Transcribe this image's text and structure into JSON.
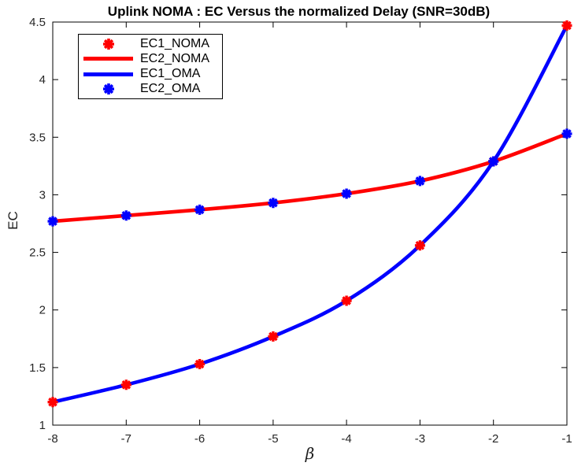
{
  "figure": {
    "background": "#ffffff",
    "axis_color": "#000000",
    "tick_label_color": "#262626"
  },
  "chart_data": {
    "type": "line",
    "title": "Uplink NOMA : EC Versus the normalized Delay (SNR=30dB)",
    "xlabel": "β",
    "ylabel": "EC",
    "x": [
      -8,
      -7,
      -6,
      -5,
      -4,
      -3,
      -2,
      -1
    ],
    "xlim": [
      -8,
      -1
    ],
    "ylim": [
      1,
      4.5
    ],
    "xticks": [
      -8,
      -7,
      -6,
      -5,
      -4,
      -3,
      -2,
      -1
    ],
    "yticks": [
      1,
      1.5,
      2,
      2.5,
      3,
      3.5,
      4,
      4.5
    ],
    "grid": false,
    "legend_position": "top-left",
    "series": [
      {
        "name": "EC1_NOMA",
        "style": "markers",
        "marker": "asterisk",
        "color": "#ff0000",
        "values": [
          1.2,
          1.35,
          1.53,
          1.77,
          2.08,
          2.56,
          3.29,
          4.47
        ]
      },
      {
        "name": "EC2_NOMA",
        "style": "line",
        "color": "#ff0000",
        "values": [
          2.77,
          2.82,
          2.87,
          2.93,
          3.01,
          3.12,
          3.29,
          3.53
        ]
      },
      {
        "name": "EC1_OMA",
        "style": "line",
        "color": "#0000ff",
        "values": [
          1.2,
          1.35,
          1.53,
          1.77,
          2.08,
          2.56,
          3.29,
          4.47
        ]
      },
      {
        "name": "EC2_OMA",
        "style": "markers",
        "marker": "asterisk",
        "color": "#0000ff",
        "values": [
          2.77,
          2.82,
          2.87,
          2.93,
          3.01,
          3.12,
          3.29,
          3.53
        ]
      }
    ]
  },
  "legend": {
    "items": [
      {
        "label": "EC1_NOMA",
        "swatch": "asterisk-marker",
        "color": "#ff0000"
      },
      {
        "label": "EC2_NOMA",
        "swatch": "line",
        "color": "#ff0000"
      },
      {
        "label": "EC1_OMA",
        "swatch": "line",
        "color": "#0000ff"
      },
      {
        "label": "EC2_OMA",
        "swatch": "asterisk-marker",
        "color": "#0000ff"
      }
    ]
  }
}
